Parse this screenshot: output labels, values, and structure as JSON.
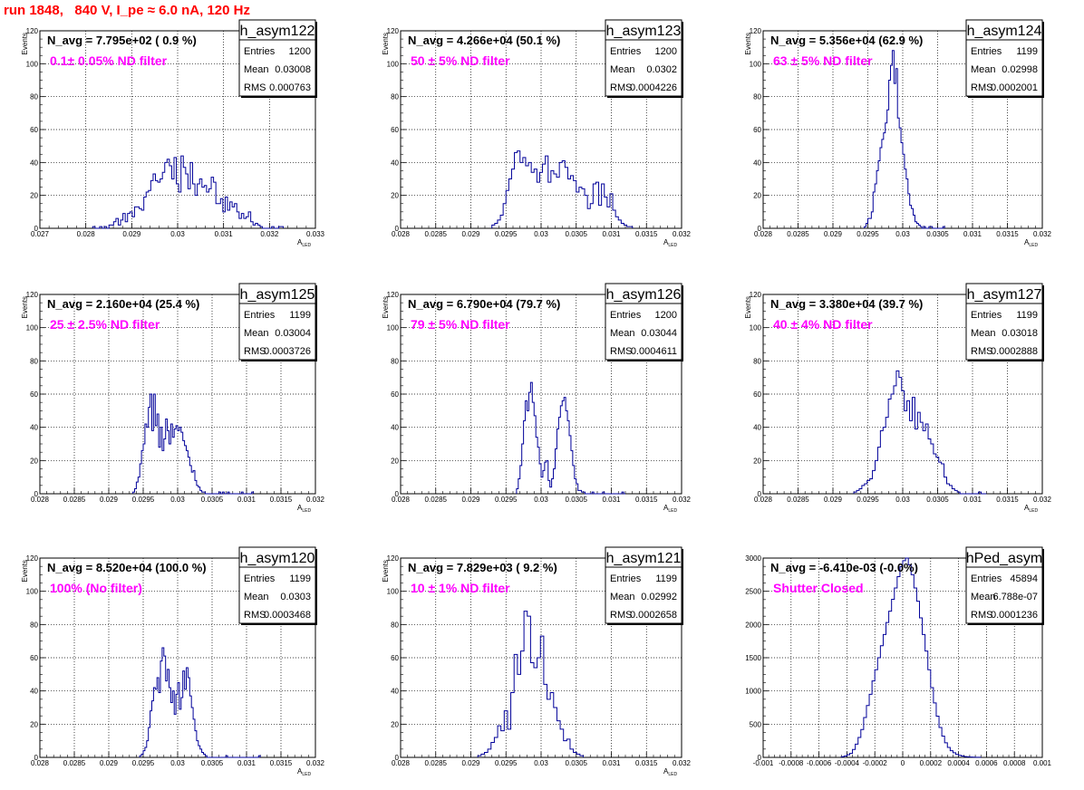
{
  "page_title": "run 1848,   840 V, I_pe ≈ 6.0 nA, 120 Hz",
  "colors": {
    "title": "#ff0000",
    "filter_label": "#ff00ff",
    "histogram": "#000099",
    "grid": "#000000"
  },
  "stats_labels": {
    "entries": "Entries",
    "mean": "Mean",
    "rms": "RMS"
  },
  "chart_data": [
    {
      "type": "histogram",
      "name": "h_asym122",
      "navg_label": "N_avg = 7.795e+02 ( 0.9 %)",
      "filter_label": "0.1± 0.05% ND filter",
      "stats": {
        "entries": "1200",
        "mean": "0.03008",
        "rms": "0.000763"
      },
      "ylabel": "Events",
      "xlabel": "A_LED",
      "xlim": [
        0.027,
        0.033
      ],
      "ylim": [
        0,
        120
      ],
      "grid": true,
      "xticks": [
        0.027,
        0.028,
        0.029,
        0.03,
        0.031,
        0.032,
        0.033
      ],
      "xtick_labels": [
        "0.027",
        "0.028",
        "0.029",
        "0.03",
        "0.031",
        "0.032",
        "0.033"
      ],
      "yticks": [
        0,
        20,
        40,
        60,
        80,
        100,
        120
      ],
      "ytick_labels": [
        "0",
        "20",
        "40",
        "60",
        "80",
        "100",
        "120"
      ],
      "bin_edges": [
        0.02815,
        0.0323
      ],
      "counts": [
        1,
        0,
        0,
        1,
        0,
        1,
        0,
        2,
        2,
        4,
        6,
        2,
        5,
        9,
        4,
        9,
        10,
        7,
        13,
        13,
        12,
        11,
        19,
        22,
        23,
        29,
        33,
        29,
        28,
        30,
        34,
        40,
        42,
        38,
        30,
        43,
        27,
        22,
        44,
        37,
        33,
        24,
        40,
        27,
        20,
        27,
        30,
        25,
        26,
        22,
        24,
        31,
        28,
        15,
        15,
        18,
        10,
        19,
        11,
        16,
        13,
        15,
        10,
        6,
        9,
        6,
        7,
        10,
        4,
        2,
        3,
        2,
        1,
        0,
        0,
        0,
        0,
        1,
        0,
        0,
        1,
        1
      ]
    },
    {
      "type": "histogram",
      "name": "h_asym123",
      "navg_label": "N_avg = 4.266e+04 (50.1 %)",
      "filter_label": "50 ± 5% ND filter",
      "stats": {
        "entries": "1200",
        "mean": "0.0302",
        "rms": "0.0004226"
      },
      "ylabel": "Events",
      "xlabel": "A_LED",
      "xlim": [
        0.028,
        0.032
      ],
      "ylim": [
        0,
        120
      ],
      "grid": true,
      "xticks": [
        0.028,
        0.0285,
        0.029,
        0.0295,
        0.03,
        0.0305,
        0.031,
        0.0315,
        0.032
      ],
      "xtick_labels": [
        "0.028",
        "0.0285",
        "0.029",
        "0.0295",
        "0.03",
        "0.0305",
        "0.031",
        "0.0315",
        "0.032"
      ],
      "yticks": [
        0,
        20,
        40,
        60,
        80,
        100,
        120
      ],
      "ytick_labels": [
        "0",
        "20",
        "40",
        "60",
        "80",
        "100",
        "120"
      ],
      "bin_edges": [
        0.0293,
        0.0313
      ],
      "counts": [
        2,
        3,
        5,
        8,
        15,
        23,
        30,
        36,
        46,
        47,
        40,
        43,
        38,
        40,
        34,
        36,
        28,
        34,
        39,
        44,
        28,
        35,
        33,
        31,
        40,
        41,
        37,
        30,
        32,
        29,
        22,
        25,
        24,
        20,
        12,
        15,
        27,
        28,
        14,
        27,
        19,
        13,
        21,
        11,
        7,
        5,
        3,
        2,
        1,
        1
      ]
    },
    {
      "type": "histogram",
      "name": "h_asym124",
      "navg_label": "N_avg = 5.356e+04 (62.9 %)",
      "filter_label": "63 ± 5% ND filter",
      "stats": {
        "entries": "1199",
        "mean": "0.02998",
        "rms": "0.0002001"
      },
      "ylabel": "Events",
      "xlabel": "A_LED",
      "xlim": [
        0.028,
        0.032
      ],
      "ylim": [
        0,
        120
      ],
      "grid": true,
      "xticks": [
        0.028,
        0.0285,
        0.029,
        0.0295,
        0.03,
        0.0305,
        0.031,
        0.0315,
        0.032
      ],
      "xtick_labels": [
        "0.028",
        "0.0285",
        "0.029",
        "0.0295",
        "0.03",
        "0.0305",
        "0.031",
        "0.0315",
        "0.032"
      ],
      "yticks": [
        0,
        20,
        40,
        60,
        80,
        100,
        120
      ],
      "ytick_labels": [
        "0",
        "20",
        "40",
        "60",
        "80",
        "100",
        "120"
      ],
      "bin_edges": [
        0.02945,
        0.0306
      ],
      "counts": [
        1,
        3,
        6,
        6,
        10,
        22,
        27,
        35,
        41,
        49,
        54,
        58,
        64,
        72,
        90,
        99,
        108,
        88,
        97,
        67,
        61,
        52,
        45,
        36,
        30,
        21,
        14,
        12,
        8,
        4,
        3,
        2,
        1,
        0,
        1,
        0,
        0,
        1,
        1,
        0,
        0,
        0,
        0,
        0,
        0,
        1
      ]
    },
    {
      "type": "histogram",
      "name": "h_asym125",
      "navg_label": "N_avg = 2.160e+04 (25.4 %)",
      "filter_label": "25 ± 2.5% ND filter",
      "stats": {
        "entries": "1199",
        "mean": "0.03004",
        "rms": "0.0003726"
      },
      "ylabel": "Events",
      "xlabel": "A_LED",
      "xlim": [
        0.028,
        0.032
      ],
      "ylim": [
        0,
        120
      ],
      "grid": true,
      "xticks": [
        0.028,
        0.0285,
        0.029,
        0.0295,
        0.03,
        0.0305,
        0.031,
        0.0315,
        0.032
      ],
      "xtick_labels": [
        "0.028",
        "0.0285",
        "0.029",
        "0.0295",
        "0.03",
        "0.0305",
        "0.031",
        "0.0315",
        "0.032"
      ],
      "yticks": [
        0,
        20,
        40,
        60,
        80,
        100,
        120
      ],
      "ytick_labels": [
        "0",
        "20",
        "40",
        "60",
        "80",
        "100",
        "120"
      ],
      "bin_edges": [
        0.02935,
        0.0311
      ],
      "counts": [
        1,
        3,
        7,
        10,
        18,
        26,
        30,
        42,
        40,
        52,
        60,
        38,
        60,
        41,
        48,
        28,
        40,
        26,
        33,
        45,
        38,
        30,
        42,
        34,
        39,
        41,
        38,
        40,
        37,
        32,
        29,
        26,
        22,
        17,
        13,
        14,
        8,
        5,
        4,
        2,
        1,
        1,
        0,
        0,
        0,
        0,
        0,
        0,
        0,
        0,
        1,
        0,
        1,
        0,
        0,
        1,
        0,
        0,
        0,
        0,
        0,
        0,
        0,
        1,
        0,
        0,
        0,
        0,
        0,
        1
      ]
    },
    {
      "type": "histogram",
      "name": "h_asym126",
      "navg_label": "N_avg = 6.790e+04 (79.7 %)",
      "filter_label": "79 ± 5% ND filter",
      "stats": {
        "entries": "1200",
        "mean": "0.03044",
        "rms": "0.0004611"
      },
      "ylabel": "Events",
      "xlabel": "A_LED",
      "xlim": [
        0.028,
        0.032
      ],
      "ylim": [
        0,
        120
      ],
      "grid": true,
      "xticks": [
        0.028,
        0.0285,
        0.029,
        0.0295,
        0.03,
        0.0305,
        0.031,
        0.0315,
        0.032
      ],
      "xtick_labels": [
        "0.028",
        "0.0285",
        "0.029",
        "0.0295",
        "0.03",
        "0.0305",
        "0.031",
        "0.0315",
        "0.032"
      ],
      "yticks": [
        0,
        20,
        40,
        60,
        80,
        100,
        120
      ],
      "ytick_labels": [
        "0",
        "20",
        "40",
        "60",
        "80",
        "100",
        "120"
      ],
      "bin_edges": [
        0.02965,
        0.0312
      ],
      "counts": [
        3,
        9,
        17,
        30,
        44,
        56,
        50,
        61,
        67,
        55,
        47,
        34,
        28,
        18,
        10,
        14,
        19,
        20,
        8,
        4,
        9,
        15,
        27,
        39,
        46,
        53,
        56,
        58,
        50,
        44,
        35,
        26,
        17,
        9,
        6,
        2,
        2,
        1,
        1,
        0,
        0,
        0,
        0,
        1,
        0,
        0,
        0,
        0,
        0,
        1,
        0,
        0,
        0,
        0,
        0,
        0,
        0,
        0,
        0,
        0,
        1,
        0
      ]
    },
    {
      "type": "histogram",
      "name": "h_asym127",
      "navg_label": "N_avg = 3.380e+04 (39.7 %)",
      "filter_label": "40 ± 4% ND filter",
      "stats": {
        "entries": "1199",
        "mean": "0.03018",
        "rms": "0.0002888"
      },
      "ylabel": "Events",
      "xlabel": "A_LED",
      "xlim": [
        0.028,
        0.032
      ],
      "ylim": [
        0,
        120
      ],
      "grid": true,
      "xticks": [
        0.028,
        0.0285,
        0.029,
        0.0295,
        0.03,
        0.0305,
        0.031,
        0.0315,
        0.032
      ],
      "xtick_labels": [
        "0.028",
        "0.0285",
        "0.029",
        "0.0295",
        "0.03",
        "0.0305",
        "0.031",
        "0.0315",
        "0.032"
      ],
      "yticks": [
        0,
        20,
        40,
        60,
        80,
        100,
        120
      ],
      "ytick_labels": [
        "0",
        "20",
        "40",
        "60",
        "80",
        "100",
        "120"
      ],
      "bin_edges": [
        0.0293,
        0.0312
      ],
      "counts": [
        1,
        2,
        3,
        5,
        6,
        8,
        9,
        14,
        20,
        28,
        38,
        40,
        46,
        57,
        60,
        65,
        74,
        70,
        62,
        50,
        56,
        44,
        58,
        39,
        49,
        43,
        38,
        42,
        33,
        30,
        24,
        22,
        19,
        18,
        10,
        6,
        5,
        3,
        2,
        1,
        0,
        0,
        0,
        0,
        0,
        0,
        0,
        1,
        0,
        0
      ]
    },
    {
      "type": "histogram",
      "name": "h_asym120",
      "navg_label": "N_avg = 8.520e+04 (100.0 %)",
      "filter_label": "100% (No filter)",
      "stats": {
        "entries": "1199",
        "mean": "0.0303",
        "rms": "0.0003468"
      },
      "ylabel": "Events",
      "xlabel": "A_LED",
      "xlim": [
        0.028,
        0.032
      ],
      "ylim": [
        0,
        120
      ],
      "grid": true,
      "xticks": [
        0.028,
        0.0285,
        0.029,
        0.0295,
        0.03,
        0.0305,
        0.031,
        0.0315,
        0.032
      ],
      "xtick_labels": [
        "0.028",
        "0.0285",
        "0.029",
        "0.0295",
        "0.03",
        "0.0305",
        "0.031",
        "0.0315",
        "0.032"
      ],
      "yticks": [
        0,
        20,
        40,
        60,
        80,
        100,
        120
      ],
      "ytick_labels": [
        "0",
        "20",
        "40",
        "60",
        "80",
        "100",
        "120"
      ],
      "bin_edges": [
        0.02945,
        0.0312
      ],
      "counts": [
        1,
        2,
        4,
        6,
        10,
        18,
        28,
        34,
        42,
        41,
        48,
        39,
        58,
        66,
        61,
        46,
        53,
        42,
        33,
        40,
        26,
        38,
        45,
        29,
        36,
        52,
        41,
        54,
        48,
        37,
        30,
        23,
        16,
        10,
        7,
        5,
        3,
        2,
        1,
        0,
        0,
        0,
        0,
        0,
        0,
        0,
        0,
        0,
        0,
        0,
        1,
        0,
        0,
        0,
        0,
        0,
        0,
        0,
        0,
        0,
        0,
        0,
        0,
        0,
        0,
        0,
        0,
        0,
        0,
        1
      ]
    },
    {
      "type": "histogram",
      "name": "h_asym121",
      "navg_label": "N_avg = 7.829e+03 ( 9.2 %)",
      "filter_label": "10 ± 1% ND filter",
      "stats": {
        "entries": "1199",
        "mean": "0.02992",
        "rms": "0.0002658"
      },
      "ylabel": "Events",
      "xlabel": "A_LED",
      "xlim": [
        0.028,
        0.032
      ],
      "ylim": [
        0,
        120
      ],
      "grid": true,
      "xticks": [
        0.028,
        0.0285,
        0.029,
        0.0295,
        0.03,
        0.0305,
        0.031,
        0.0315,
        0.032
      ],
      "xtick_labels": [
        "0.028",
        "0.0285",
        "0.029",
        "0.0295",
        "0.03",
        "0.0305",
        "0.031",
        "0.0315",
        "0.032"
      ],
      "yticks": [
        0,
        20,
        40,
        60,
        80,
        100,
        120
      ],
      "ytick_labels": [
        "0",
        "20",
        "40",
        "60",
        "80",
        "100",
        "120"
      ],
      "bin_edges": [
        0.0291,
        0.0306
      ],
      "counts": [
        1,
        2,
        3,
        5,
        9,
        12,
        19,
        16,
        28,
        17,
        39,
        62,
        50,
        64,
        88,
        85,
        57,
        54,
        60,
        73,
        44,
        35,
        39,
        30,
        22,
        17,
        10,
        11,
        5,
        3,
        2,
        1
      ]
    },
    {
      "type": "histogram",
      "name": "hPed_asym",
      "navg_label": "N_avg = -6.410e-03 (-0.0%)",
      "filter_label": "Shutter Closed",
      "stats": {
        "entries": "45894",
        "mean": "6.788e-07",
        "rms": "0.0001236"
      },
      "ylabel": "",
      "xlabel": "",
      "xlim": [
        -0.001,
        0.001
      ],
      "ylim": [
        0,
        3000
      ],
      "grid": true,
      "xticks": [
        -0.001,
        -0.0008,
        -0.0006,
        -0.0004,
        -0.0002,
        0,
        0.0002,
        0.0004,
        0.0006,
        0.0008,
        0.001
      ],
      "xtick_labels": [
        "-0.001",
        "-0.0008",
        "-0.0006",
        "-0.0004",
        "-0.0002",
        "0",
        "0.0002",
        "0.0004",
        "0.0006",
        "0.0008",
        "0.001"
      ],
      "yticks": [
        0,
        500,
        1000,
        1500,
        2000,
        2500,
        3000
      ],
      "ytick_labels": [
        "0",
        "500",
        "1000",
        "1500",
        "2000",
        "2500",
        "3000"
      ],
      "bin_edges": [
        -0.00044,
        0.00056
      ],
      "counts": [
        10,
        20,
        40,
        60,
        120,
        200,
        300,
        420,
        600,
        780,
        950,
        1150,
        1320,
        1500,
        1680,
        1850,
        2030,
        2200,
        2380,
        2550,
        2720,
        2870,
        2960,
        3000,
        2900,
        2750,
        2550,
        2350,
        2100,
        1850,
        1600,
        1320,
        1050,
        820,
        620,
        450,
        320,
        220,
        150,
        100,
        70,
        45,
        30,
        20,
        12,
        8,
        5,
        3,
        2,
        1
      ]
    }
  ]
}
